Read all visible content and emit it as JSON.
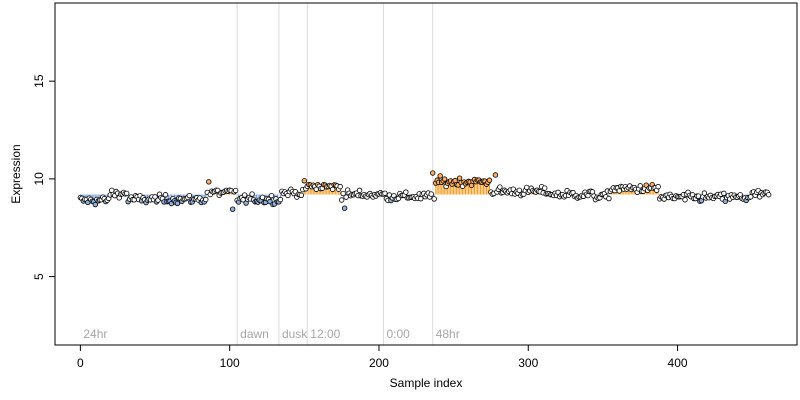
{
  "chart_data": {
    "type": "scatter",
    "xlabel": "Sample index",
    "ylabel": "Expression",
    "xlim": [
      -17,
      480
    ],
    "ylim": [
      1.5,
      19
    ],
    "xticks": [
      0,
      100,
      200,
      300,
      400
    ],
    "yticks": [
      5,
      10,
      15
    ],
    "grid": false,
    "colors": {
      "point_fill": "#ffffff",
      "high_fill": "#fdae61",
      "low_fill": "#8fb1e0",
      "above_bar": "#f39c1f",
      "below_bar": "#6f9ad6",
      "marker_line": "#dcdcdc",
      "marker_text": "#a6a6a6"
    },
    "baseline": 9.2,
    "markers": [
      {
        "x": 0,
        "label": "24hr"
      },
      {
        "x": 105,
        "label": "dawn"
      },
      {
        "x": 133,
        "label": "dusk"
      },
      {
        "x": 152,
        "label": "12:00"
      },
      {
        "x": 203,
        "label": "0:00"
      },
      {
        "x": 236,
        "label": "48hr"
      }
    ],
    "segments": [
      {
        "x0": 0,
        "x1": 20,
        "level": 8.9
      },
      {
        "x0": 20,
        "x1": 32,
        "level": 9.25
      },
      {
        "x0": 32,
        "x1": 85,
        "level": 8.95
      },
      {
        "x0": 85,
        "x1": 105,
        "level": 9.3
      },
      {
        "x0": 105,
        "x1": 135,
        "level": 8.95
      },
      {
        "x0": 135,
        "x1": 150,
        "level": 9.3
      },
      {
        "x0": 150,
        "x1": 175,
        "level": 9.6
      },
      {
        "x0": 175,
        "x1": 205,
        "level": 9.2
      },
      {
        "x0": 205,
        "x1": 238,
        "level": 9.1
      },
      {
        "x0": 238,
        "x1": 275,
        "level": 9.85
      },
      {
        "x0": 275,
        "x1": 315,
        "level": 9.35
      },
      {
        "x0": 315,
        "x1": 345,
        "level": 9.2
      },
      {
        "x0": 345,
        "x1": 355,
        "level": 9.1
      },
      {
        "x0": 355,
        "x1": 388,
        "level": 9.5
      },
      {
        "x0": 388,
        "x1": 450,
        "level": 9.05
      },
      {
        "x0": 450,
        "x1": 462,
        "level": 9.2
      }
    ],
    "n_points": 462
  }
}
